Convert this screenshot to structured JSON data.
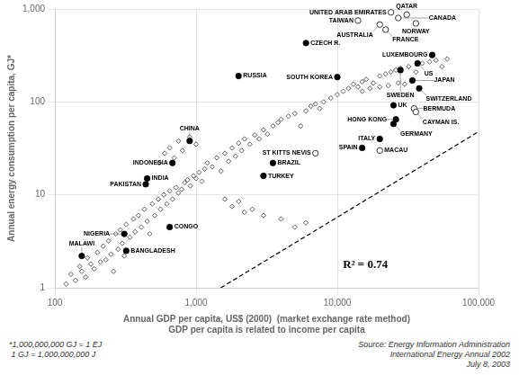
{
  "chart_data": {
    "type": "scatter",
    "xlabel": "Annual GDP per capita, US$ (2000)  (market exchange rate method)\nGDP per capita is related to income per capita",
    "ylabel": "Annual energy consumption per capita, GJ*",
    "log": true,
    "grid": true,
    "xlim": [
      100,
      100000
    ],
    "ylim": [
      1,
      1000
    ],
    "xticks": [
      100,
      {
        "value": 1000,
        "label": "1,000"
      },
      {
        "value": 10000,
        "label": "10,000"
      },
      {
        "value": 100000,
        "label": "100,000"
      }
    ],
    "yticks": [
      1,
      10,
      100,
      {
        "value": 1000,
        "label": "1,000"
      }
    ],
    "annotations": [
      "R² = 0.74"
    ],
    "footnotes": [
      "*1,000,000,000 GJ = 1 EJ\n 1 GJ = 1,000,000,000 J",
      "Source: Energy Information Administration\nInternational Energy Annual 2002\nJuly 8, 2003"
    ],
    "series": [
      {
        "type": "line",
        "line_style": "dashed",
        "color": "#000000",
        "x": [
          1496,
          100000
        ],
        "values": [
          1,
          47.77
        ]
      },
      {
        "marker": "open_diamond",
        "color": "#333333",
        "x": [
          120,
          130,
          140,
          150,
          155,
          165,
          170,
          180,
          190,
          200,
          210,
          220,
          230,
          240,
          250,
          260,
          270,
          280,
          290,
          300,
          310,
          320,
          340,
          360,
          370,
          390,
          410,
          430,
          450,
          470,
          490,
          510,
          540,
          560,
          590,
          620,
          650,
          680,
          720,
          750,
          790,
          830,
          870,
          910,
          960,
          1000,
          1050,
          1100,
          1150,
          1200,
          1300,
          1400,
          1500,
          1600,
          1700,
          1800,
          1900,
          2000,
          2100,
          2200,
          2400,
          2600,
          2800,
          3000,
          3200,
          3500,
          3800,
          4000,
          4500,
          5000,
          5500,
          6000,
          6500,
          7000,
          7500,
          8000,
          9000,
          10000,
          11000,
          12000,
          13000,
          14000,
          15000,
          16000,
          18000,
          20000,
          22000,
          24000,
          26000,
          28000,
          32000,
          36000,
          40000,
          45000,
          50000,
          55000,
          60000,
          1600,
          1800,
          2000,
          2200,
          2500,
          3000,
          4000,
          5000,
          6000,
          550,
          600,
          650,
          700,
          750,
          800,
          900,
          1000,
          15000,
          17000,
          20000,
          23000,
          27000,
          30000
        ],
        "values": [
          1.1,
          1.4,
          1.2,
          1.7,
          1.5,
          1.3,
          2.1,
          1.8,
          1.6,
          2.4,
          1.9,
          2.8,
          2.0,
          3.2,
          2.3,
          1.5,
          3.8,
          2.6,
          4.2,
          3.0,
          2.2,
          4.8,
          3.5,
          5.5,
          4.0,
          6.0,
          4.5,
          7.0,
          5.2,
          3.8,
          8.0,
          6.0,
          9.0,
          7.0,
          10.0,
          8.0,
          11.0,
          9.0,
          12.0,
          10.5,
          11.5,
          13.5,
          14.5,
          12.5,
          16.0,
          15.0,
          17.5,
          14.0,
          19.0,
          22.0,
          20.0,
          25.0,
          18.0,
          28.0,
          23.0,
          32.0,
          26.0,
          36.0,
          30.0,
          40.0,
          35.0,
          44.0,
          40.0,
          50.0,
          45.0,
          55.0,
          60.0,
          65.0,
          70.0,
          75.0,
          55.0,
          80.0,
          90.0,
          95.0,
          85.0,
          100.0,
          110.0,
          120.0,
          130.0,
          140.0,
          155.0,
          145.0,
          165.0,
          175.0,
          160.0,
          190.0,
          200.0,
          210.0,
          220.0,
          230.0,
          240.0,
          210.0,
          260.0,
          270.0,
          280.0,
          240.0,
          290.0,
          9.0,
          7.5,
          8.5,
          6.5,
          7.0,
          6.0,
          5.5,
          4.5,
          5.0,
          22.0,
          28.0,
          32.0,
          25.0,
          38.0,
          30.0,
          42.0,
          35.0,
          130.0,
          140.0,
          145.0,
          150.0,
          160.0,
          155.0
        ]
      },
      {
        "marker": "circle",
        "color": "#000000",
        "labels": [
          "MALAWI",
          "BANGLADESH",
          "NIGERIA",
          "CONGO",
          "PAKISTAN",
          "INDIA",
          "INDONESIA",
          "CHINA",
          "RUSSIA",
          "SOUTH KOREA",
          "CZECH R.",
          "TURKEY",
          "BRAZIL",
          "TAIWAN",
          "AUSTRALIA",
          "FRANCE",
          "CANADA",
          "QATAR",
          "UNITED ARAB EMIRATES",
          "NORWAY",
          "LUXEMBOURG",
          "US",
          "SWEDEN",
          "JAPAN",
          "SWITZERLAND",
          "UK",
          "BERMUDA",
          "CAYMAN IS.",
          "HONG KONG",
          "GERMANY",
          "ITALY",
          "SPAIN",
          "MACAU",
          "ST KITTS NEVIS"
        ],
        "x": [
          155,
          320,
          310,
          650,
          440,
          450,
          680,
          900,
          2000,
          10000,
          6000,
          3000,
          3500,
          14000,
          20000,
          22000,
          27000,
          31000,
          24000,
          36000,
          47000,
          37000,
          28000,
          34000,
          38000,
          25000,
          35000,
          36000,
          26000,
          25000,
          20000,
          15000,
          20000,
          7000
        ],
        "values": [
          2.2,
          2.5,
          3.8,
          4.5,
          13.0,
          15.0,
          22.0,
          38.0,
          190.0,
          185.0,
          430.0,
          16.0,
          22.0,
          750.0,
          680.0,
          600.0,
          800.0,
          870.0,
          920.0,
          700.0,
          320.0,
          260.0,
          220.0,
          170.0,
          140.0,
          92.0,
          85.0,
          78.0,
          65.0,
          58.0,
          40.0,
          32.0,
          30.0,
          28.0
        ],
        "colors": [
          "#000000",
          "#000000",
          "#000000",
          "#000000",
          "#000000",
          "#000000",
          "#000000",
          "#000000",
          "#000000",
          "#000000",
          "#000000",
          "#000000",
          "#000000",
          "#ffffff",
          "#ffffff",
          "#ffffff",
          "#ffffff",
          "#ffffff",
          "#ffffff",
          "#ffffff",
          "#000000",
          "#000000",
          "#000000",
          "#000000",
          "#000000",
          "#000000",
          "#ffffff",
          "#ffffff",
          "#000000",
          "#000000",
          "#000000",
          "#000000",
          "#ffffff",
          "#ffffff"
        ]
      }
    ]
  }
}
